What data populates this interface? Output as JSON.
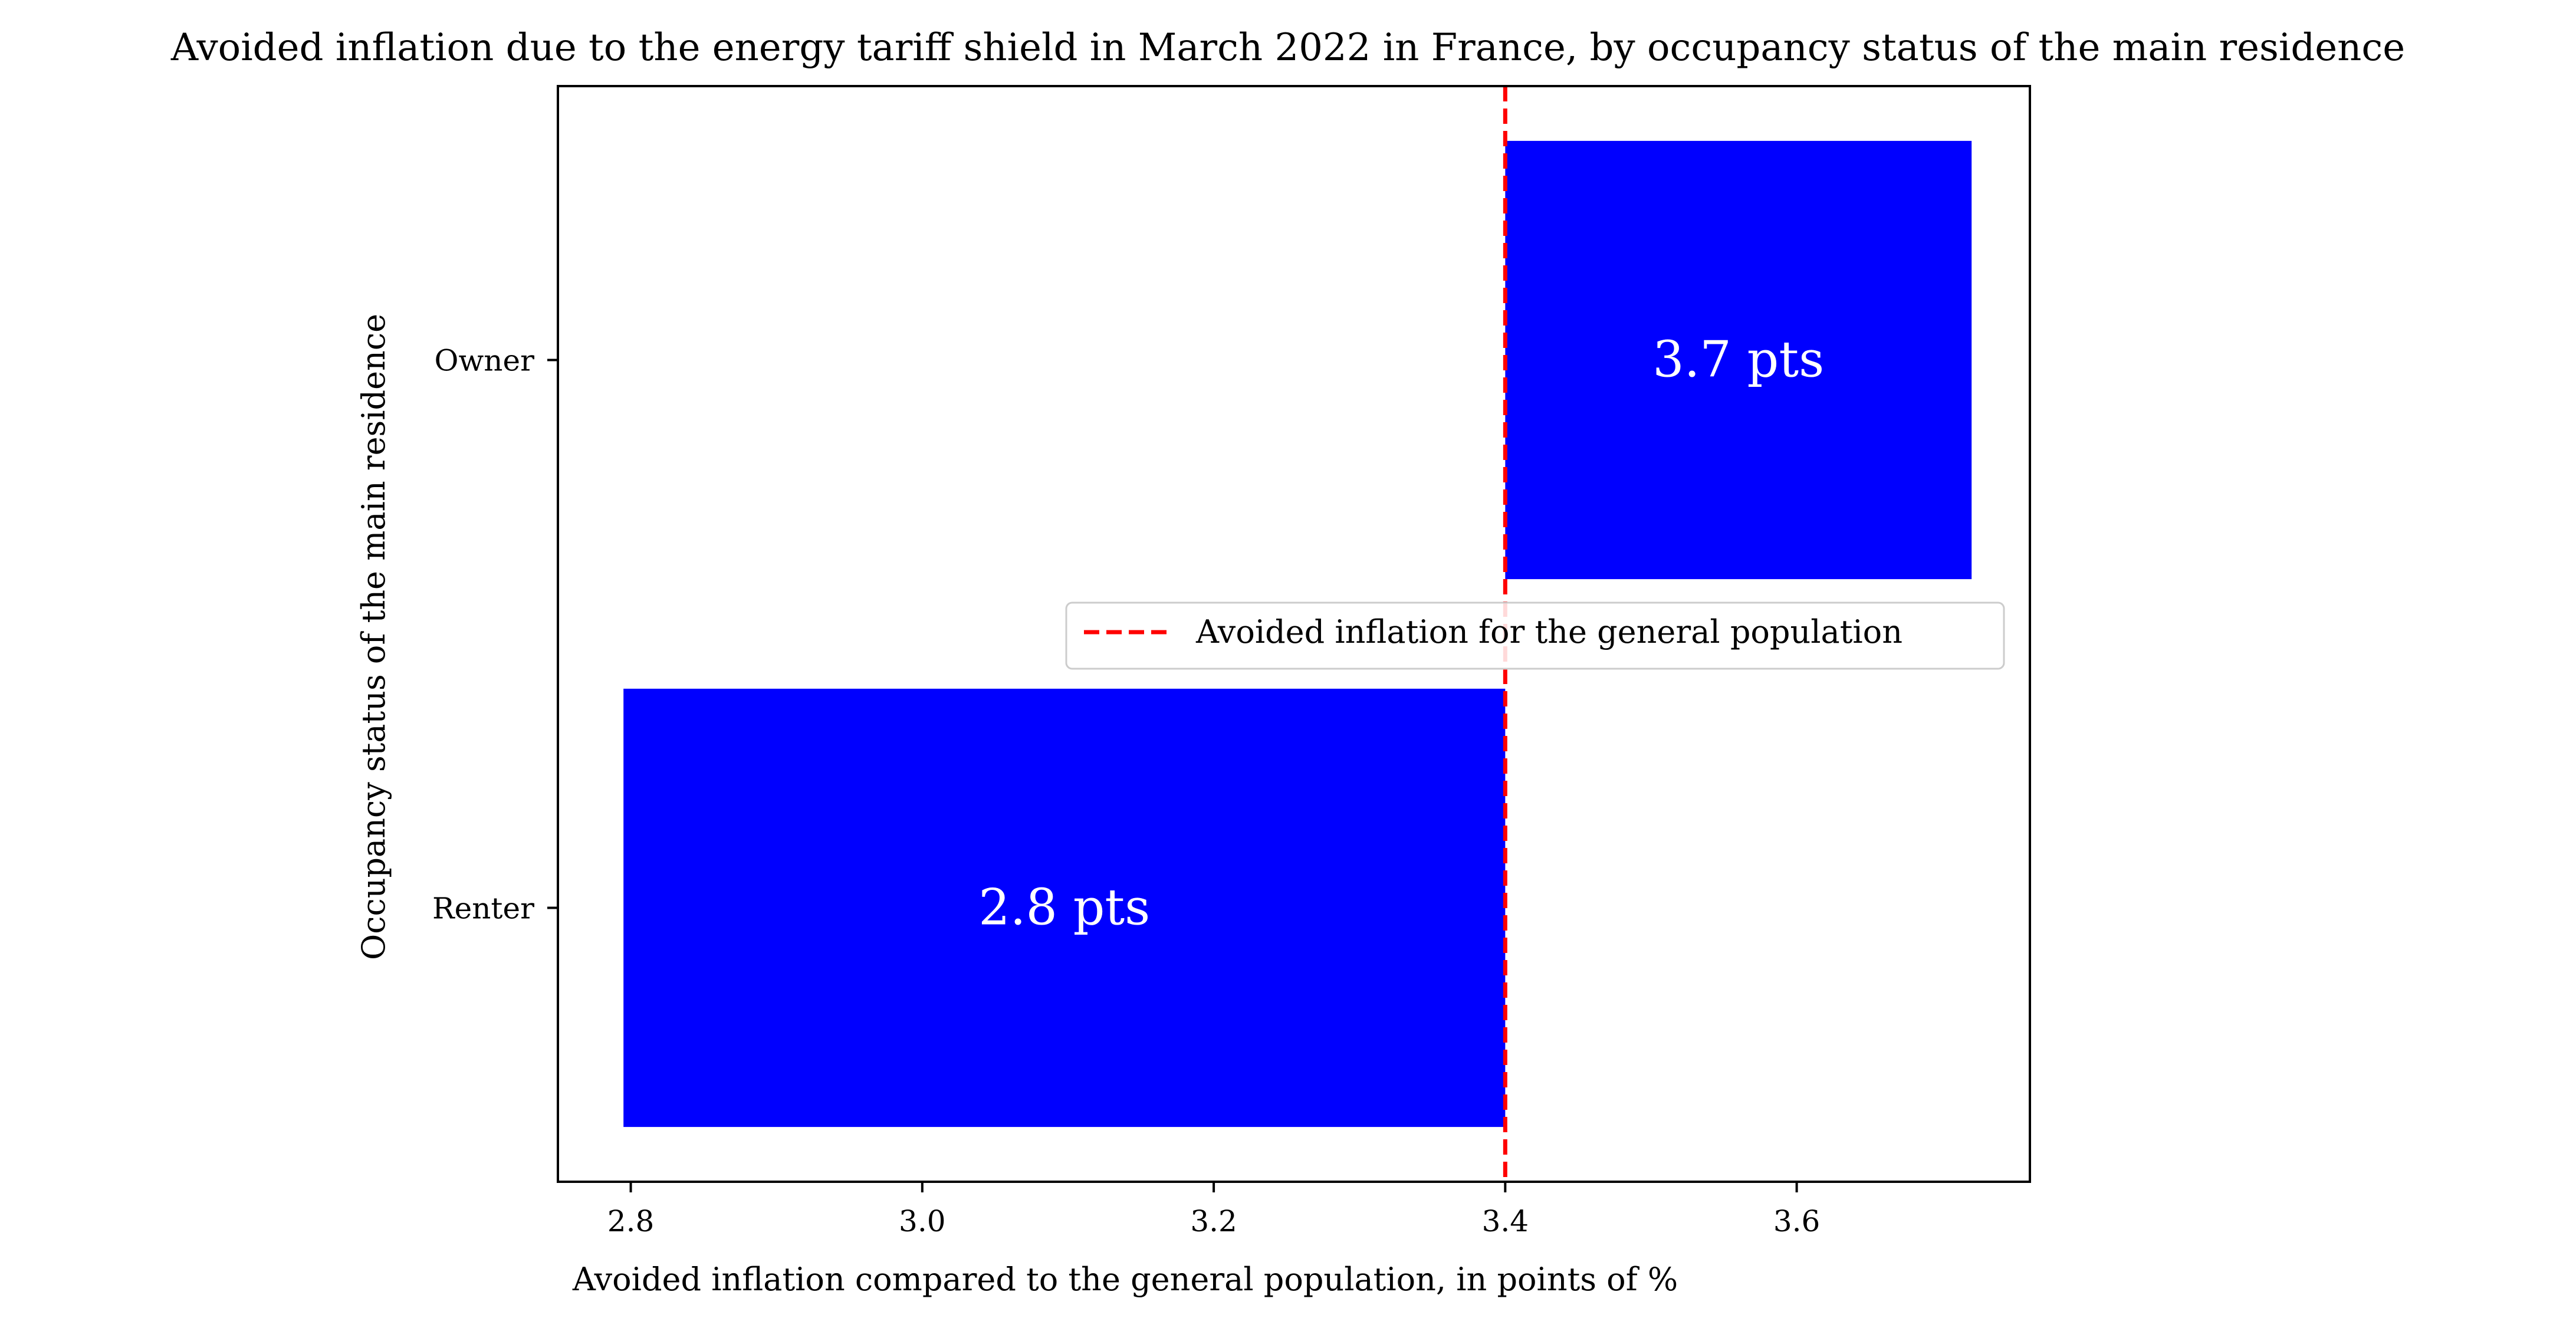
{
  "chart_data": {
    "type": "bar",
    "orientation": "horizontal",
    "title": "Avoided inflation due to the energy tariff shield in March 2022 in France, by occupancy status of the main residence",
    "xlabel": "Avoided inflation compared to the general population, in points of %",
    "ylabel": "Occupancy status of the main residence",
    "categories": [
      "Owner",
      "Renter"
    ],
    "baseline": 3.4,
    "values": [
      3.72,
      2.795
    ],
    "data_labels": [
      "3.7 pts",
      "2.8 pts"
    ],
    "xlim": [
      2.75,
      3.76
    ],
    "xticks": [
      2.8,
      3.0,
      3.2,
      3.4,
      3.6
    ],
    "xtick_labels": [
      "2.8",
      "3.0",
      "3.2",
      "3.4",
      "3.6"
    ],
    "bar_color": "#0000ff",
    "reference_line": {
      "value": 3.4,
      "label": "Avoided inflation for the general population",
      "color": "#ff0000",
      "style": "dashed"
    },
    "legend_position": "center-right",
    "grid": false
  }
}
